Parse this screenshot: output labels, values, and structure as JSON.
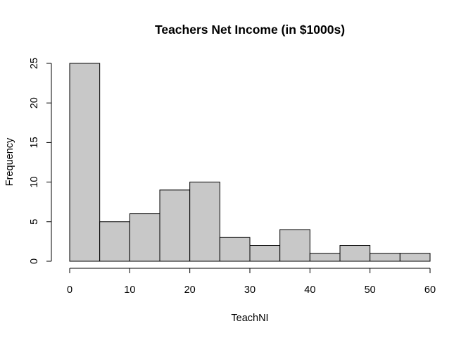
{
  "chart_data": {
    "type": "bar",
    "title": "Teachers Net Income (in $1000s)",
    "xlabel": "TeachNI",
    "ylabel": "Frequency",
    "bins": [
      {
        "start": 0,
        "end": 5,
        "count": 25
      },
      {
        "start": 5,
        "end": 10,
        "count": 5
      },
      {
        "start": 10,
        "end": 15,
        "count": 6
      },
      {
        "start": 15,
        "end": 20,
        "count": 9
      },
      {
        "start": 20,
        "end": 25,
        "count": 10
      },
      {
        "start": 25,
        "end": 30,
        "count": 3
      },
      {
        "start": 30,
        "end": 35,
        "count": 2
      },
      {
        "start": 35,
        "end": 40,
        "count": 4
      },
      {
        "start": 40,
        "end": 45,
        "count": 1
      },
      {
        "start": 45,
        "end": 50,
        "count": 2
      },
      {
        "start": 50,
        "end": 55,
        "count": 1
      },
      {
        "start": 55,
        "end": 60,
        "count": 1
      }
    ],
    "xticks": [
      0,
      10,
      20,
      30,
      40,
      50,
      60
    ],
    "yticks": [
      0,
      5,
      10,
      15,
      20,
      25
    ],
    "xlim": [
      0,
      60
    ],
    "ylim": [
      0,
      25
    ],
    "grid": false,
    "bar_color": "#c8c8c8",
    "edge_color": "#000000"
  }
}
